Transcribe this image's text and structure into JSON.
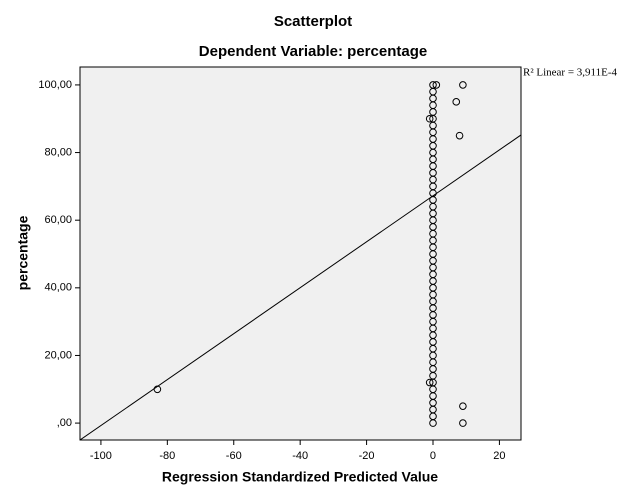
{
  "chart_data": {
    "type": "scatter",
    "title": "Scatterplot",
    "subtitle": "Dependent Variable: percentage",
    "x_label": "Regression Standardized Predicted Value",
    "y_label": "percentage",
    "annotation": "R² Linear = 3,911E-4",
    "xlim": [
      -106.3,
      26.5
    ],
    "ylim": [
      -5,
      105.3
    ],
    "xticks": [
      -100,
      -80,
      -60,
      -40,
      -20,
      0,
      20
    ],
    "yticks": [
      {
        "value": 0,
        "label": ",00"
      },
      {
        "value": 20,
        "label": "20,00"
      },
      {
        "value": 40,
        "label": "40,00"
      },
      {
        "value": 60,
        "label": "60,00"
      },
      {
        "value": 80,
        "label": "80,00"
      },
      {
        "value": 100,
        "label": "100,00"
      }
    ],
    "x": [
      0,
      0,
      0,
      0,
      0,
      0,
      0,
      0,
      0,
      0,
      0,
      0,
      0,
      0,
      0,
      0,
      0,
      0,
      0,
      0,
      0,
      0,
      0,
      0,
      0,
      0,
      0,
      0,
      0,
      0,
      0,
      0,
      0,
      0,
      0,
      0,
      0,
      0,
      0,
      0,
      0,
      0,
      0,
      0,
      0,
      0,
      0,
      0,
      0,
      0,
      0,
      -83,
      9,
      7,
      8,
      -1,
      -1,
      9,
      9,
      1
    ],
    "y": [
      0,
      2,
      4,
      6,
      8,
      10,
      12,
      14,
      16,
      18,
      20,
      22,
      24,
      26,
      28,
      30,
      32,
      34,
      36,
      38,
      40,
      42,
      44,
      46,
      48,
      50,
      52,
      54,
      56,
      58,
      60,
      62,
      64,
      66,
      68,
      70,
      72,
      74,
      76,
      78,
      80,
      82,
      84,
      86,
      88,
      90,
      92,
      94,
      96,
      98,
      100,
      10,
      100,
      95,
      85,
      90,
      12,
      5,
      0,
      100
    ],
    "fit_line": {
      "x": [
        -106.3,
        26.5
      ],
      "y": [
        -5,
        85.2
      ]
    },
    "color": "#000000",
    "background": "#f0f0f0"
  }
}
